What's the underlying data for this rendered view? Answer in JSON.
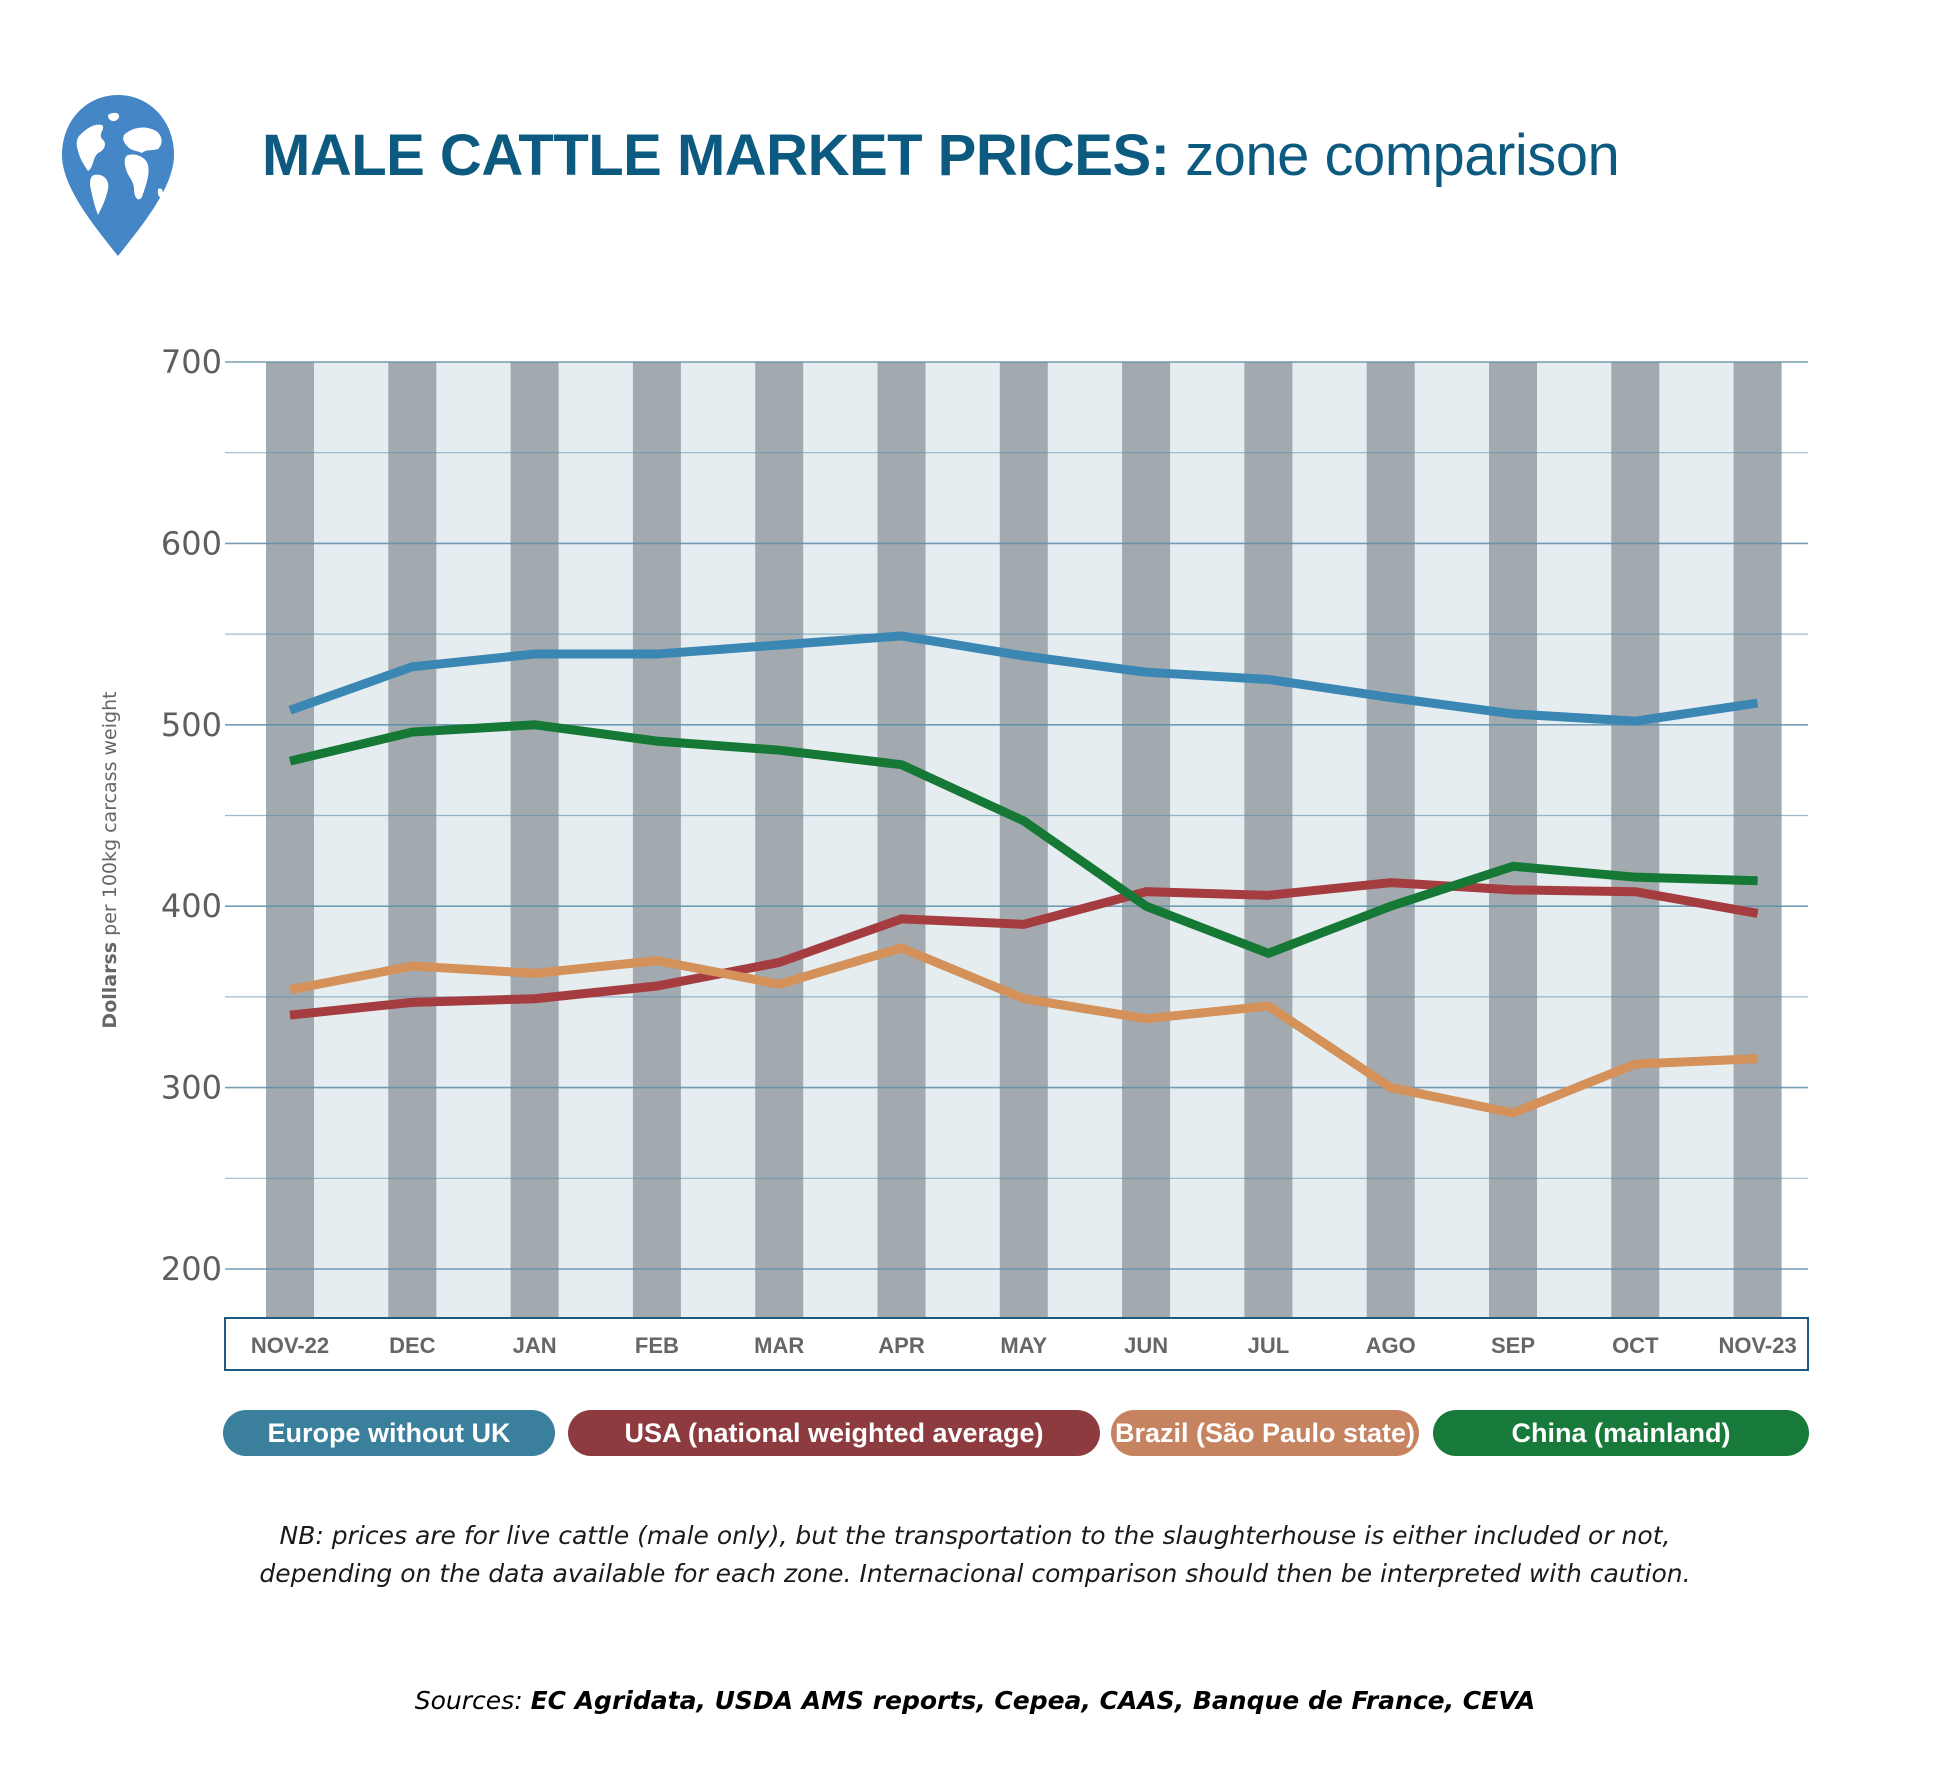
{
  "header": {
    "title_bold": "MALE CATTLE MARKET PRICES:",
    "title_light": " zone comparison",
    "icon": "globe-map-pin-icon"
  },
  "colors": {
    "title": "#0d5a80",
    "stripe_dark": "#a2a9af",
    "stripe_light": "#e5edf1",
    "grid": "#5e8eaa",
    "axis_box": "#1e5a80",
    "europe": "#3b87b3",
    "usa": "#a53c3f",
    "brazil": "#d4915a",
    "china": "#157834"
  },
  "chart_data": {
    "type": "line",
    "title": "MALE CATTLE MARKET PRICES: zone comparison",
    "xlabel": "",
    "ylabel_bold": "Dollarss",
    "ylabel_rest": " per 100kg carcass weight",
    "ylim": [
      175,
      700
    ],
    "yticks": [
      200,
      300,
      400,
      500,
      600,
      700
    ],
    "minor_gridlines": [
      250,
      350,
      450,
      550,
      650
    ],
    "grid": true,
    "legend_position": "bottom",
    "categories": [
      "NOV-22",
      "DEC",
      "JAN",
      "FEB",
      "MAR",
      "APR",
      "MAY",
      "JUN",
      "JUL",
      "AGO",
      "SEP",
      "OCT",
      "NOV-23"
    ],
    "series": [
      {
        "key": "europe",
        "name": "Europe without UK",
        "legend_color": "#3a7f9b",
        "values": [
          508,
          532,
          539,
          539,
          544,
          549,
          538,
          529,
          525,
          515,
          506,
          502,
          512
        ]
      },
      {
        "key": "usa",
        "name": "USA (national weighted average)",
        "legend_color": "#8e3b3f",
        "values": [
          340,
          347,
          349,
          356,
          369,
          393,
          390,
          408,
          406,
          413,
          409,
          408,
          396
        ]
      },
      {
        "key": "brazil",
        "name": "Brazil (São Paulo state)",
        "legend_color": "#c58360",
        "values": [
          354,
          367,
          363,
          370,
          357,
          377,
          349,
          338,
          345,
          300,
          286,
          313,
          316
        ]
      },
      {
        "key": "china",
        "name": "China (mainland)",
        "legend_color": "#177a3a",
        "values": [
          480,
          496,
          500,
          491,
          486,
          478,
          447,
          400,
          374,
          400,
          422,
          416,
          414
        ]
      }
    ]
  },
  "footer": {
    "note_line1": "NB: prices are for live cattle (male only), but the transportation to the slaughterhouse is either included or not,",
    "note_line2": "depending on the data available for each zone. Internacional comparison should then be interpreted with caution.",
    "sources_label": "Sources: ",
    "sources_list": "EC Agridata, USDA AMS reports, Cepea, CAAS, Banque de France, CEVA"
  }
}
